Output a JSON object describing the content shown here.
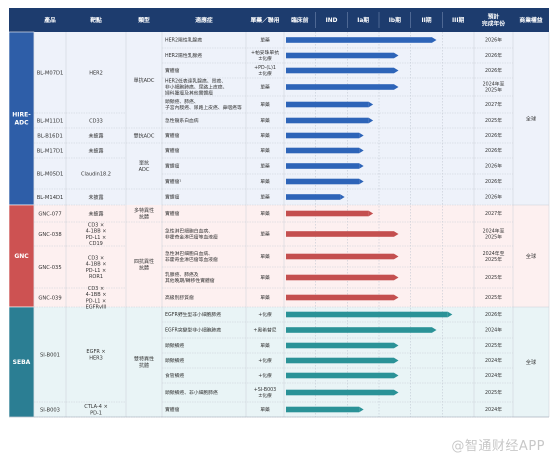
{
  "colors": {
    "header": "#1d3c6e",
    "blue": "#2d64b8",
    "red": "#c44f4f",
    "teal": "#2a9297",
    "group_hire": "#2e5ea8",
    "group_gnc": "#cd5252",
    "group_seba": "#2b7e93",
    "band_hire": "#eef2fa",
    "band_gnc": "#fdf0f0",
    "band_seba": "#e9f4f6"
  },
  "headers": {
    "product": "產品",
    "target": "靶點",
    "category": "類型",
    "indication": "適應症",
    "regimen": "單藥／聯用",
    "preclinical": "臨床前",
    "ind": "IND",
    "ia": "Ia期",
    "ib": "Ib期",
    "ii": "II期",
    "iii": "III期",
    "completion": "預計\n完成年份",
    "rights": "商業權益"
  },
  "groups": [
    {
      "key": "hire",
      "label": "HIRE-\nADC"
    },
    {
      "key": "gnc",
      "label": "GNC"
    },
    {
      "key": "seba",
      "label": "SEBA"
    }
  ],
  "rights": [
    "全球",
    "全球",
    "全球"
  ],
  "watermark": "@智通财经APP",
  "chart_data": {
    "type": "gantt-table",
    "stages": [
      "臨床前",
      "IND",
      "Ia期",
      "Ib期",
      "II期",
      "III期"
    ],
    "rows": [
      {
        "indication": "HER2陽性乳腺癌",
        "regimen": "單藥",
        "progress": 4.8,
        "year": "2026年"
      },
      {
        "indication": "HER2陽性乳腺癌",
        "regimen": "+帕妥珠單抗\n±化療",
        "progress": 3.6,
        "year": "2026年"
      },
      {
        "indication": "實體瘤",
        "regimen": "+PD-(L)1\n±化療",
        "progress": 3.6,
        "year": "2026年"
      },
      {
        "indication": "HER2低表達乳腺癌、胃癌、\n非小細胞肺癌、尿路上皮癌、\n婦科腫瘤及其他實體瘤",
        "regimen": "單藥",
        "progress": 3.6,
        "year": "2024年至\n2025年"
      },
      {
        "indication": "頭頸癌、肺癌、\n子宮內膜癌、尿路上皮癌、鼻咽癌等",
        "regimen": "單藥",
        "progress": 2.8,
        "year": "2027年"
      },
      {
        "indication": "急性髓系白血病",
        "regimen": "單藥",
        "progress": 2.8,
        "year": "2025年"
      },
      {
        "indication": "實體瘤",
        "regimen": "單藥",
        "progress": 2.5,
        "year": "2026年"
      },
      {
        "indication": "實體瘤",
        "regimen": "單藥",
        "progress": 2.5,
        "year": "2026年"
      },
      {
        "indication": "實體瘤",
        "regimen": "單藥",
        "progress": 2.5,
        "year": "2026年"
      },
      {
        "indication": "實體瘤¹",
        "regimen": "單藥",
        "progress": 2.5,
        "year": "2026年"
      },
      {
        "indication": "實體瘤",
        "regimen": "單藥",
        "progress": 1.9,
        "year": "2026年"
      },
      {
        "indication": "實體瘤",
        "regimen": "單藥",
        "progress": 2.8,
        "year": "2027年"
      },
      {
        "indication": "急性淋巴細胞白血病、\n非霍奇金淋巴瘤等血液瘤",
        "regimen": "單藥",
        "progress": 3.6,
        "year": "2024年至\n2025年"
      },
      {
        "indication": "急性淋巴細胞白血病、\n非霍奇金淋巴瘤等血液瘤",
        "regimen": "單藥",
        "progress": 3.6,
        "year": "2024年至\n2025年"
      },
      {
        "indication": "乳腺癌、肺癌及\n其他晚期/轉移性實體瘤",
        "regimen": "單藥",
        "progress": 3.6,
        "year": "2025年"
      },
      {
        "indication": "高級別膠質瘤",
        "regimen": "單藥",
        "progress": 3.6,
        "year": "2025年"
      },
      {
        "indication": "EGFR野生型非小細胞肺癌",
        "regimen": "+化療",
        "progress": 5.3,
        "year": "2026年"
      },
      {
        "indication": "EGFR突變型非小細胞肺癌",
        "regimen": "+奧希替尼",
        "progress": 4.8,
        "year": "2024年"
      },
      {
        "indication": "頭頸鱗癌",
        "regimen": "單藥",
        "progress": 3.6,
        "year": "2025年"
      },
      {
        "indication": "頭頸鱗癌",
        "regimen": "+化療",
        "progress": 3.6,
        "year": "2024年"
      },
      {
        "indication": "食管鱗癌",
        "regimen": "+化療",
        "progress": 3.6,
        "year": "2024年"
      },
      {
        "indication": "頭頸鱗癌、非小細胞肺癌",
        "regimen": "+SI-B003\n±化療",
        "progress": 3.6,
        "year": "2025年"
      },
      {
        "indication": "實體瘤",
        "regimen": "單藥",
        "progress": 2.5,
        "year": "2024年"
      }
    ],
    "products": [
      {
        "name": "BL-M07D1",
        "start": 0,
        "end": 4
      },
      {
        "name": "BL-M11D1",
        "start": 5,
        "end": 5
      },
      {
        "name": "BL-B16D1",
        "start": 6,
        "end": 6
      },
      {
        "name": "BL-M17D1",
        "start": 7,
        "end": 7
      },
      {
        "name": "BL-M05D1",
        "start": 8,
        "end": 9
      },
      {
        "name": "BL-M14D1",
        "start": 10,
        "end": 10
      },
      {
        "name": "GNC-077",
        "start": 11,
        "end": 11
      },
      {
        "name": "GNC-038",
        "start": 12,
        "end": 12
      },
      {
        "name": "GNC-035",
        "start": 13,
        "end": 14
      },
      {
        "name": "GNC-039",
        "start": 15,
        "end": 15
      },
      {
        "name": "SI-B001",
        "start": 16,
        "end": 21
      },
      {
        "name": "SI-B003",
        "start": 22,
        "end": 22
      }
    ],
    "targets": [
      {
        "name": "HER2",
        "start": 0,
        "end": 4
      },
      {
        "name": "CD33",
        "start": 5,
        "end": 5
      },
      {
        "name": "未披露",
        "start": 6,
        "end": 6
      },
      {
        "name": "未披露",
        "start": 7,
        "end": 7
      },
      {
        "name": "Claudin18.2",
        "start": 8,
        "end": 9
      },
      {
        "name": "未披露",
        "start": 10,
        "end": 10
      },
      {
        "name": "未披露",
        "start": 11,
        "end": 11
      },
      {
        "name": "CD3 ×\n4-1BB ×\nPD-L1 ×\nCD19",
        "start": 12,
        "end": 12
      },
      {
        "name": "CD3 ×\n4-1BB ×\nPD-L1 ×\nROR1",
        "start": 13,
        "end": 14
      },
      {
        "name": "CD3 ×\n4-1BB ×\nPD-L1 ×\nEGFRvIII",
        "start": 15,
        "end": 15
      },
      {
        "name": "EGFR ×\nHER3",
        "start": 16,
        "end": 21
      },
      {
        "name": "CTLA-4 ×\nPD-1",
        "start": 22,
        "end": 22
      }
    ],
    "types": [
      {
        "name": "單抗ADC",
        "start": 0,
        "end": 5
      },
      {
        "name": "雙抗ADC",
        "start": 6,
        "end": 6
      },
      {
        "name": "單抗\nADC",
        "start": 7,
        "end": 9
      },
      {
        "name": "多特異性\n抗體",
        "start": 11,
        "end": 11
      },
      {
        "name": "四抗異性\n抗體",
        "start": 12,
        "end": 15
      },
      {
        "name": "雙特異性\n抗體",
        "start": 16,
        "end": 22
      }
    ]
  }
}
